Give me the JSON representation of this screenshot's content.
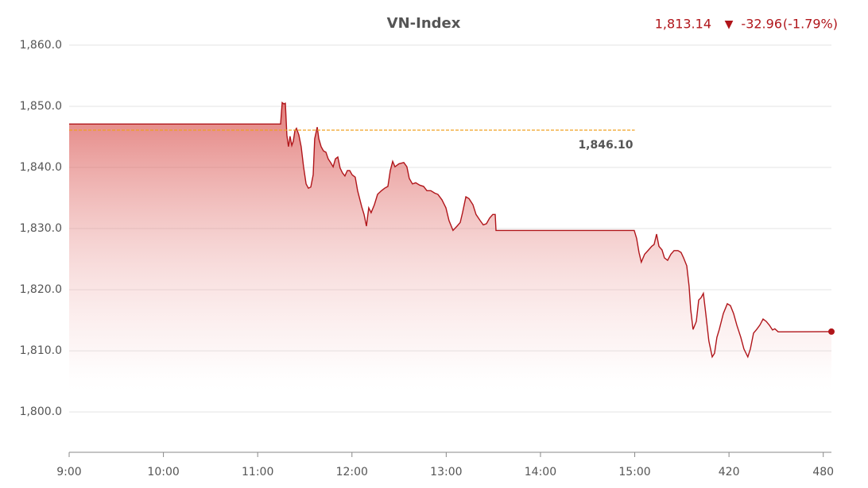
{
  "chart_data": {
    "type": "line",
    "title": "VN-Index",
    "summary": {
      "value": "1,813.14",
      "arrow": "▼",
      "change": "-32.96",
      "change_percent": "(-1.79%)"
    },
    "xlim": [
      0,
      485.2
    ],
    "xticks": [
      {
        "value": 0,
        "label": "9:00"
      },
      {
        "value": 60,
        "label": "10:00"
      },
      {
        "value": 120,
        "label": "11:00"
      },
      {
        "value": 180,
        "label": "12:00"
      },
      {
        "value": 240,
        "label": "13:00"
      },
      {
        "value": 300,
        "label": "14:00"
      },
      {
        "value": 360,
        "label": "15:00"
      },
      420,
      480
    ],
    "ylim": [
      1793.4,
      1860.9
    ],
    "yticks": [
      {
        "value": 1800,
        "label": "1,800.0"
      },
      {
        "value": 1810,
        "label": "1,810.0"
      },
      {
        "value": 1820,
        "label": "1,820.0"
      },
      {
        "value": 1830,
        "label": "1,830.0"
      },
      {
        "value": 1840,
        "label": "1,840.0"
      },
      {
        "value": 1850,
        "label": "1,850.0"
      },
      {
        "value": 1860,
        "label": "1,860.0"
      }
    ],
    "grid": true,
    "reference": {
      "value": 1846.1,
      "label": "1,846.10",
      "color": "#f0a020"
    },
    "x": [
      0,
      134.6,
      135.6,
      136.6,
      137.6,
      138.6,
      139.6,
      140.6,
      141.7,
      142.7,
      143.7,
      144.7,
      146.2,
      147.7,
      149.2,
      150.8,
      152.3,
      153.8,
      155.3,
      156.3,
      157.9,
      158.9,
      160.4,
      161.9,
      163.4,
      164.9,
      166.4,
      168.0,
      169.5,
      171.0,
      172.5,
      174.0,
      175.5,
      177.1,
      178.6,
      180.1,
      182.1,
      183.6,
      186.2,
      187.7,
      189.2,
      190.7,
      192.2,
      194.3,
      196.3,
      198.8,
      200.8,
      202.9,
      204.4,
      205.9,
      207.4,
      209.9,
      213.0,
      215.0,
      216.5,
      218.5,
      220.6,
      223.1,
      225.6,
      227.7,
      230.2,
      232.7,
      234.7,
      237.3,
      239.8,
      241.8,
      244.3,
      246.9,
      248.9,
      250.4,
      252.5,
      254.5,
      257.0,
      259.0,
      261.6,
      263.6,
      265.6,
      267.6,
      269.6,
      271.2,
      271.7,
      359.7,
      361.2,
      362.7,
      364.2,
      366.3,
      368.8,
      370.8,
      372.3,
      373.9,
      375.4,
      377.4,
      378.9,
      380.9,
      383.0,
      385.0,
      387.5,
      389.5,
      391.1,
      393.1,
      394.6,
      395.6,
      397.1,
      399.2,
      400.7,
      402.2,
      403.7,
      405.2,
      407.2,
      409.3,
      410.8,
      412.3,
      413.8,
      416.4,
      418.9,
      420.9,
      422.9,
      425.0,
      427.5,
      429.5,
      432.0,
      433.6,
      435.6,
      437.6,
      439.6,
      441.7,
      443.7,
      445.7,
      447.7,
      449.2,
      451.3,
      485.2
    ],
    "series": [
      {
        "name": "VN-Index",
        "color": "#b0151a",
        "values": [
          1847.1,
          1847.1,
          1850.6,
          1850.4,
          1850.5,
          1845.3,
          1843.4,
          1845.1,
          1843.6,
          1844.3,
          1846.0,
          1846.4,
          1845.3,
          1843.4,
          1840.1,
          1837.3,
          1836.6,
          1836.8,
          1838.8,
          1844.7,
          1846.6,
          1844.7,
          1843.4,
          1842.7,
          1842.5,
          1841.4,
          1840.8,
          1840.1,
          1841.4,
          1841.7,
          1839.9,
          1839.1,
          1838.6,
          1839.5,
          1839.5,
          1838.8,
          1838.4,
          1836.2,
          1833.6,
          1832.3,
          1830.4,
          1833.4,
          1832.6,
          1833.9,
          1835.6,
          1836.2,
          1836.6,
          1836.9,
          1839.5,
          1841.0,
          1840.1,
          1840.6,
          1840.8,
          1840.1,
          1838.2,
          1837.3,
          1837.5,
          1837.1,
          1836.9,
          1836.2,
          1836.2,
          1835.8,
          1835.6,
          1834.7,
          1833.4,
          1831.3,
          1829.7,
          1830.4,
          1831.0,
          1832.6,
          1835.2,
          1834.9,
          1833.9,
          1832.3,
          1831.3,
          1830.6,
          1830.8,
          1831.7,
          1832.3,
          1832.3,
          1829.7,
          1829.7,
          1828.4,
          1826.1,
          1824.5,
          1825.8,
          1826.5,
          1827.1,
          1827.4,
          1829.1,
          1827.1,
          1826.5,
          1825.2,
          1824.8,
          1825.8,
          1826.4,
          1826.4,
          1826.1,
          1825.2,
          1823.9,
          1820.6,
          1816.8,
          1813.5,
          1814.8,
          1818.3,
          1818.7,
          1819.4,
          1816.1,
          1811.6,
          1809.0,
          1809.6,
          1812.2,
          1813.5,
          1816.1,
          1817.7,
          1817.4,
          1816.1,
          1814.2,
          1812.2,
          1810.3,
          1809.0,
          1810.3,
          1812.9,
          1813.5,
          1814.2,
          1815.2,
          1814.8,
          1814.2,
          1813.4,
          1813.6,
          1813.1,
          1813.14
        ]
      }
    ]
  }
}
